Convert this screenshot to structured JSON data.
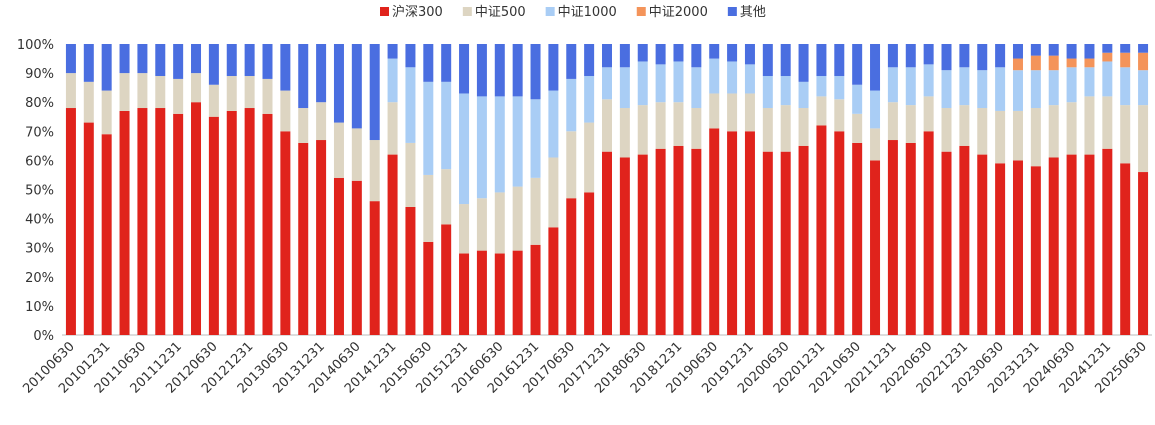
{
  "chart_data": {
    "type": "bar",
    "stacked": true,
    "categories": [
      "20100630",
      null,
      "20101231",
      null,
      "20110630",
      null,
      "20111231",
      null,
      "20120630",
      null,
      "20121231",
      null,
      "20130630",
      null,
      "20131231",
      null,
      "20140630",
      null,
      "20141231",
      null,
      "20150630",
      null,
      "20151231",
      null,
      "20160630",
      null,
      "20161231",
      null,
      "20170630",
      null,
      "20171231",
      null,
      "20180630",
      null,
      "20181231",
      null,
      "20190630",
      null,
      "20191231",
      null,
      "20200630",
      null,
      "20201231",
      null,
      "20210630",
      null,
      "20211231",
      null,
      "20220630",
      null,
      "20221231",
      null,
      "20230630",
      null,
      "20231231",
      null,
      "20240630",
      null,
      "20241231",
      null,
      "20250630"
    ],
    "series": [
      {
        "name": "沪深300",
        "color": "#e0231c",
        "values": [
          78,
          73,
          69,
          77,
          78,
          78,
          76,
          80,
          75,
          77,
          78,
          76,
          70,
          66,
          67,
          54,
          53,
          46,
          62,
          44,
          32,
          38,
          28,
          29,
          28,
          29,
          31,
          37,
          47,
          49,
          63,
          61,
          62,
          64,
          65,
          64,
          71,
          70,
          70,
          63,
          63,
          65,
          72,
          70,
          66,
          60,
          67,
          66,
          70,
          63,
          65,
          62,
          59,
          60,
          58,
          61,
          62,
          62,
          64,
          59,
          56
        ]
      },
      {
        "name": "中证500",
        "color": "#ddd5c2",
        "values": [
          12,
          14,
          15,
          13,
          12,
          11,
          12,
          10,
          11,
          12,
          11,
          12,
          14,
          12,
          13,
          19,
          18,
          21,
          18,
          22,
          23,
          19,
          17,
          18,
          21,
          22,
          23,
          24,
          23,
          24,
          18,
          17,
          17,
          16,
          15,
          14,
          12,
          13,
          13,
          15,
          16,
          13,
          10,
          11,
          10,
          11,
          13,
          13,
          12,
          15,
          14,
          16,
          18,
          17,
          20,
          18,
          18,
          20,
          18,
          20,
          23
        ]
      },
      {
        "name": "中证1000",
        "color": "#a9cdf5",
        "values": [
          0,
          0,
          0,
          0,
          0,
          0,
          0,
          0,
          0,
          0,
          0,
          0,
          0,
          0,
          0,
          0,
          0,
          0,
          15,
          26,
          32,
          30,
          38,
          35,
          33,
          31,
          27,
          23,
          18,
          16,
          11,
          14,
          15,
          13,
          14,
          14,
          12,
          11,
          10,
          11,
          10,
          9,
          7,
          8,
          10,
          13,
          12,
          13,
          11,
          13,
          13,
          13,
          15,
          14,
          13,
          12,
          12,
          10,
          12,
          13,
          12
        ]
      },
      {
        "name": "中证2000",
        "color": "#f4945a",
        "values": [
          0,
          0,
          0,
          0,
          0,
          0,
          0,
          0,
          0,
          0,
          0,
          0,
          0,
          0,
          0,
          0,
          0,
          0,
          0,
          0,
          0,
          0,
          0,
          0,
          0,
          0,
          0,
          0,
          0,
          0,
          0,
          0,
          0,
          0,
          0,
          0,
          0,
          0,
          0,
          0,
          0,
          0,
          0,
          0,
          0,
          0,
          0,
          0,
          0,
          0,
          0,
          0,
          0,
          4,
          5,
          5,
          3,
          3,
          3,
          5,
          6
        ]
      },
      {
        "name": "其他",
        "color": "#4a6ee0",
        "values": [
          10,
          13,
          16,
          10,
          10,
          11,
          12,
          10,
          14,
          11,
          11,
          12,
          16,
          22,
          20,
          27,
          29,
          33,
          5,
          8,
          13,
          13,
          17,
          18,
          18,
          18,
          19,
          16,
          12,
          11,
          8,
          8,
          6,
          7,
          6,
          8,
          5,
          6,
          7,
          11,
          11,
          13,
          11,
          11,
          14,
          16,
          8,
          8,
          7,
          9,
          8,
          9,
          8,
          5,
          4,
          4,
          5,
          5,
          3,
          3,
          3
        ]
      }
    ],
    "ylim": [
      0,
      100
    ],
    "yticks": [
      {
        "value": 0,
        "label": "0%"
      },
      {
        "value": 10,
        "label": "10%"
      },
      {
        "value": 20,
        "label": "20%"
      },
      {
        "value": 30,
        "label": "30%"
      },
      {
        "value": 40,
        "label": "40%"
      },
      {
        "value": 50,
        "label": "50%"
      },
      {
        "value": 60,
        "label": "60%"
      },
      {
        "value": 70,
        "label": "70%"
      },
      {
        "value": 80,
        "label": "80%"
      },
      {
        "value": 90,
        "label": "90%"
      },
      {
        "value": 100,
        "label": "100%"
      }
    ],
    "legend": "top"
  }
}
